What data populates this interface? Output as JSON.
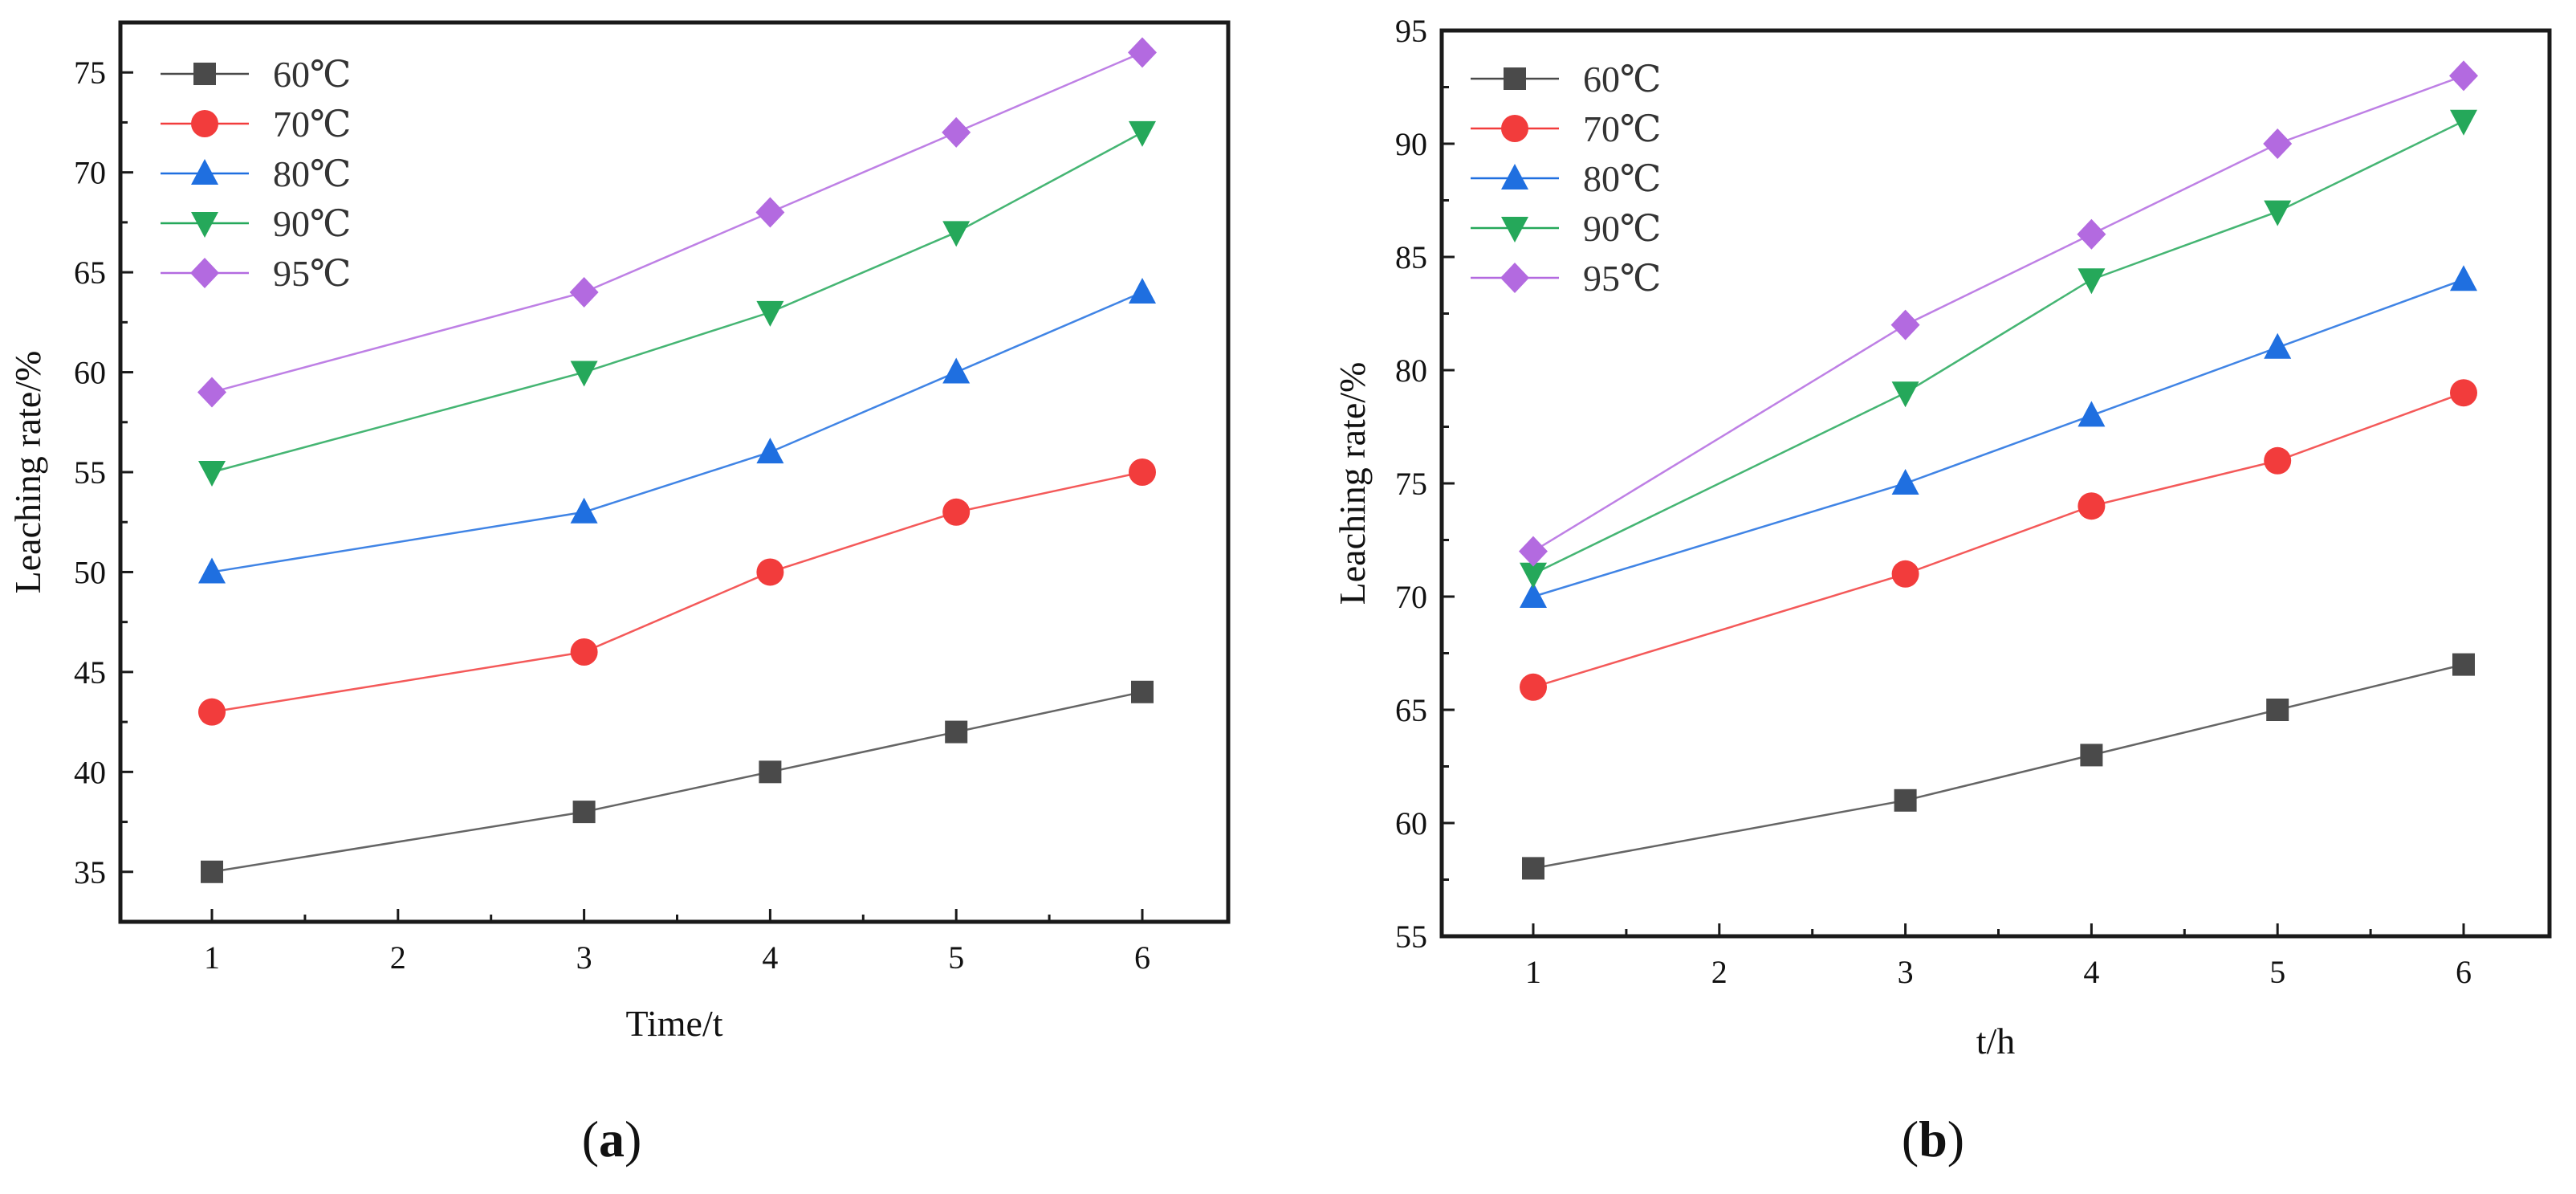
{
  "chart_data": [
    {
      "type": "line",
      "panel_label": "a",
      "xlabel": "Time/t",
      "ylabel": "Leaching  rate/%",
      "x": [
        1,
        3,
        4,
        5,
        6
      ],
      "x_ticks": [
        "1",
        "2",
        "3",
        "4",
        "5",
        "6"
      ],
      "ylim": [
        32.5,
        77.5
      ],
      "y_ticks": [
        "35",
        "40",
        "45",
        "50",
        "55",
        "60",
        "65",
        "70",
        "75"
      ],
      "legend_position": "top-left",
      "series": [
        {
          "name": "60℃",
          "color": "#4a4a4a",
          "marker": "square",
          "values": [
            35,
            38,
            40,
            42,
            44
          ]
        },
        {
          "name": "70℃",
          "color": "#f23c3c",
          "marker": "circle",
          "values": [
            43,
            46,
            50,
            53,
            55
          ]
        },
        {
          "name": "80℃",
          "color": "#1f6fe0",
          "marker": "triangle-up",
          "values": [
            50,
            53,
            56,
            60,
            64
          ]
        },
        {
          "name": "90℃",
          "color": "#25a85a",
          "marker": "triangle-down",
          "values": [
            55,
            60,
            63,
            67,
            72
          ]
        },
        {
          "name": "95℃",
          "color": "#b36ae0",
          "marker": "diamond",
          "values": [
            59,
            64,
            68,
            72,
            76
          ]
        }
      ]
    },
    {
      "type": "line",
      "panel_label": "b",
      "xlabel": "t/h",
      "ylabel": "Leaching rate/%",
      "x": [
        1,
        3,
        4,
        5,
        6
      ],
      "x_ticks": [
        "1",
        "2",
        "3",
        "4",
        "5",
        "6"
      ],
      "ylim": [
        55,
        95
      ],
      "y_ticks": [
        "55",
        "60",
        "65",
        "70",
        "75",
        "80",
        "85",
        "90",
        "95"
      ],
      "legend_position": "top-left",
      "series": [
        {
          "name": "60℃",
          "color": "#4a4a4a",
          "marker": "square",
          "values": [
            58,
            61,
            63,
            65,
            67
          ]
        },
        {
          "name": "70℃",
          "color": "#f23c3c",
          "marker": "circle",
          "values": [
            66,
            71,
            74,
            76,
            79
          ]
        },
        {
          "name": "80℃",
          "color": "#1f6fe0",
          "marker": "triangle-up",
          "values": [
            70,
            75,
            78,
            81,
            84
          ]
        },
        {
          "name": "90℃",
          "color": "#25a85a",
          "marker": "triangle-down",
          "values": [
            71,
            79,
            84,
            87,
            91
          ]
        },
        {
          "name": "95℃",
          "color": "#b36ae0",
          "marker": "diamond",
          "values": [
            72,
            82,
            86,
            90,
            93
          ]
        }
      ]
    }
  ]
}
